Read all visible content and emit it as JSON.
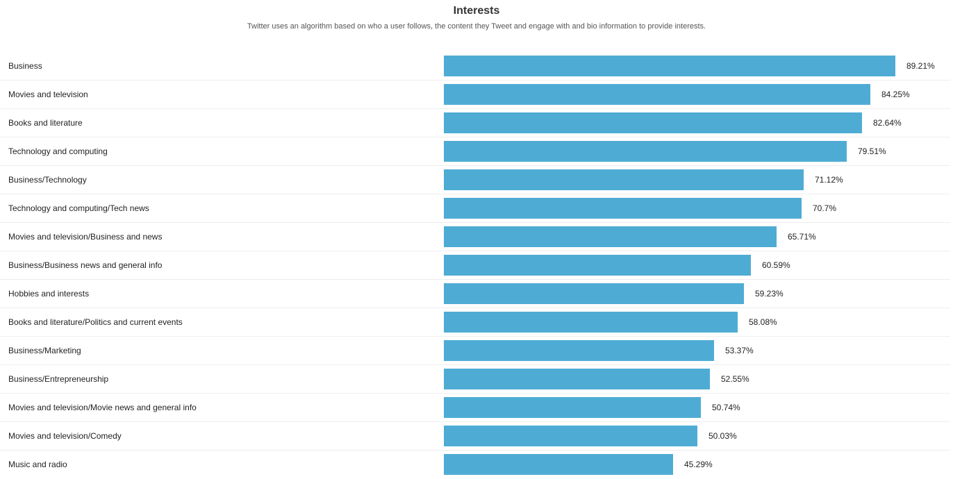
{
  "chart_data": {
    "type": "bar",
    "orientation": "horizontal",
    "title": "Interests",
    "subtitle": "Twitter uses an algorithm based on who a user follows, the content they Tweet and engage with and bio information to provide interests.",
    "bar_color": "#4eacd4",
    "categories": [
      "Business",
      "Movies and television",
      "Books and literature",
      "Technology and computing",
      "Business/Technology",
      "Technology and computing/Tech news",
      "Movies and television/Business and news",
      "Business/Business news and general info",
      "Hobbies and interests",
      "Books and literature/Politics and current events",
      "Business/Marketing",
      "Business/Entrepreneurship",
      "Movies and television/Movie news and general info",
      "Movies and television/Comedy",
      "Music and radio"
    ],
    "values": [
      89.21,
      84.25,
      82.64,
      79.51,
      71.12,
      70.7,
      65.71,
      60.59,
      59.23,
      58.08,
      53.37,
      52.55,
      50.74,
      50.03,
      45.29
    ],
    "value_labels": [
      "89.21%",
      "84.25%",
      "82.64%",
      "79.51%",
      "71.12%",
      "70.7%",
      "65.71%",
      "60.59%",
      "59.23%",
      "58.08%",
      "53.37%",
      "52.55%",
      "50.74%",
      "50.03%",
      "45.29%"
    ],
    "xlim": [
      0,
      100
    ]
  }
}
